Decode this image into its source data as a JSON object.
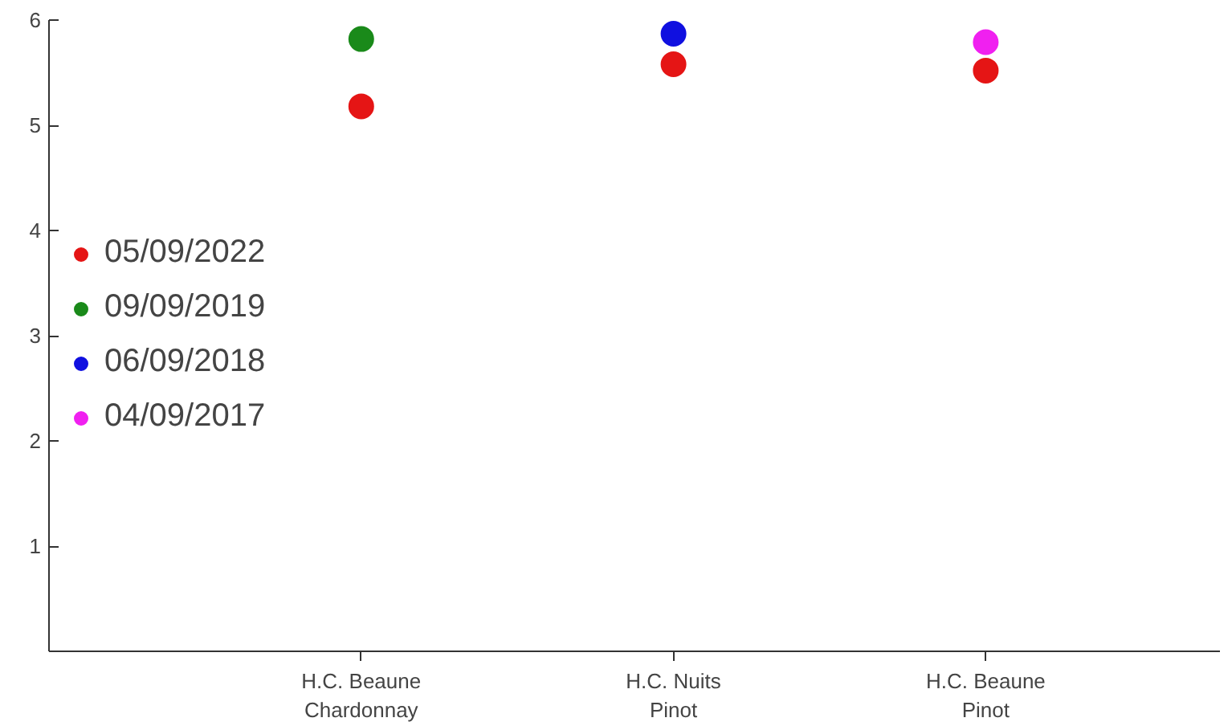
{
  "chart_data": {
    "type": "scatter",
    "categories": [
      "H.C. Beaune\nChardonnay",
      "H.C. Nuits\nPinot",
      "H.C. Beaune\nPinot"
    ],
    "ylim": [
      0,
      6
    ],
    "yticks": [
      1,
      2,
      3,
      4,
      5,
      6
    ],
    "grid": false,
    "legend": "left",
    "marker": "circle",
    "series": [
      {
        "name": "05/09/2022",
        "color": "#e51515",
        "values": [
          5.18,
          5.58,
          5.52
        ]
      },
      {
        "name": "09/09/2019",
        "color": "#1a8a1a",
        "values": [
          5.82,
          null,
          null
        ]
      },
      {
        "name": "06/09/2018",
        "color": "#1010e0",
        "values": [
          null,
          5.87,
          null
        ]
      },
      {
        "name": "04/09/2017",
        "color": "#f020f0",
        "values": [
          null,
          null,
          5.79
        ]
      }
    ]
  }
}
